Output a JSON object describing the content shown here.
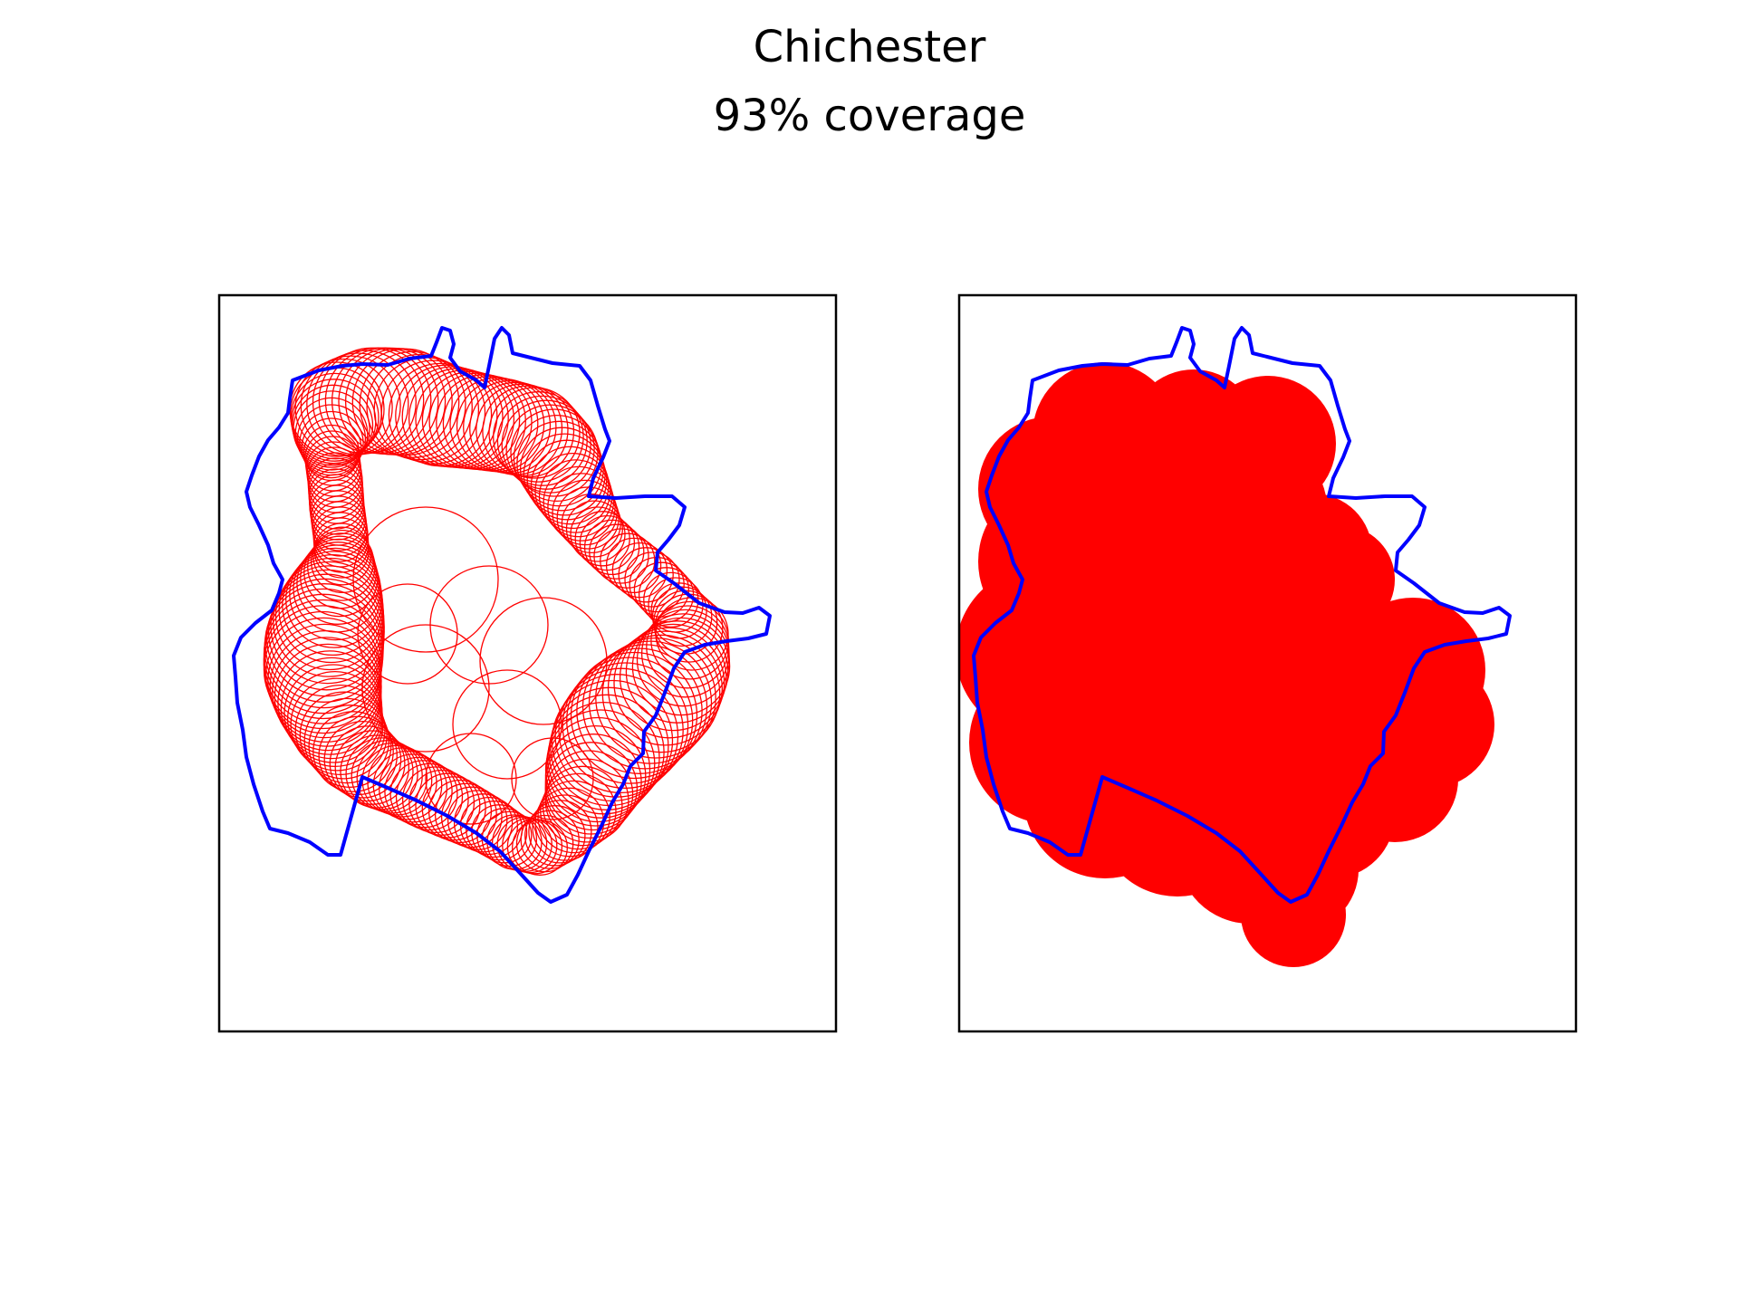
{
  "figure": {
    "title": "Chichester",
    "subtitle": "93% coverage"
  },
  "colors": {
    "boundary": "#0000ff",
    "circles": "#ff0000",
    "frame": "#000000",
    "background": "#ffffff"
  },
  "chart_data": [
    {
      "type": "map",
      "panel": "left",
      "description_of_marks": "unfilled circle outlines over region boundary",
      "boundary_color": "#0000ff",
      "circle_color": "#ff0000",
      "circle_style": "outline",
      "axes_ticks": false,
      "grid": false,
      "legend": "none"
    },
    {
      "type": "map",
      "panel": "right",
      "description_of_marks": "filled union of circles over region boundary",
      "boundary_color": "#0000ff",
      "circle_color": "#ff0000",
      "circle_style": "filled",
      "axes_ticks": false,
      "grid": false,
      "legend": "none"
    }
  ]
}
